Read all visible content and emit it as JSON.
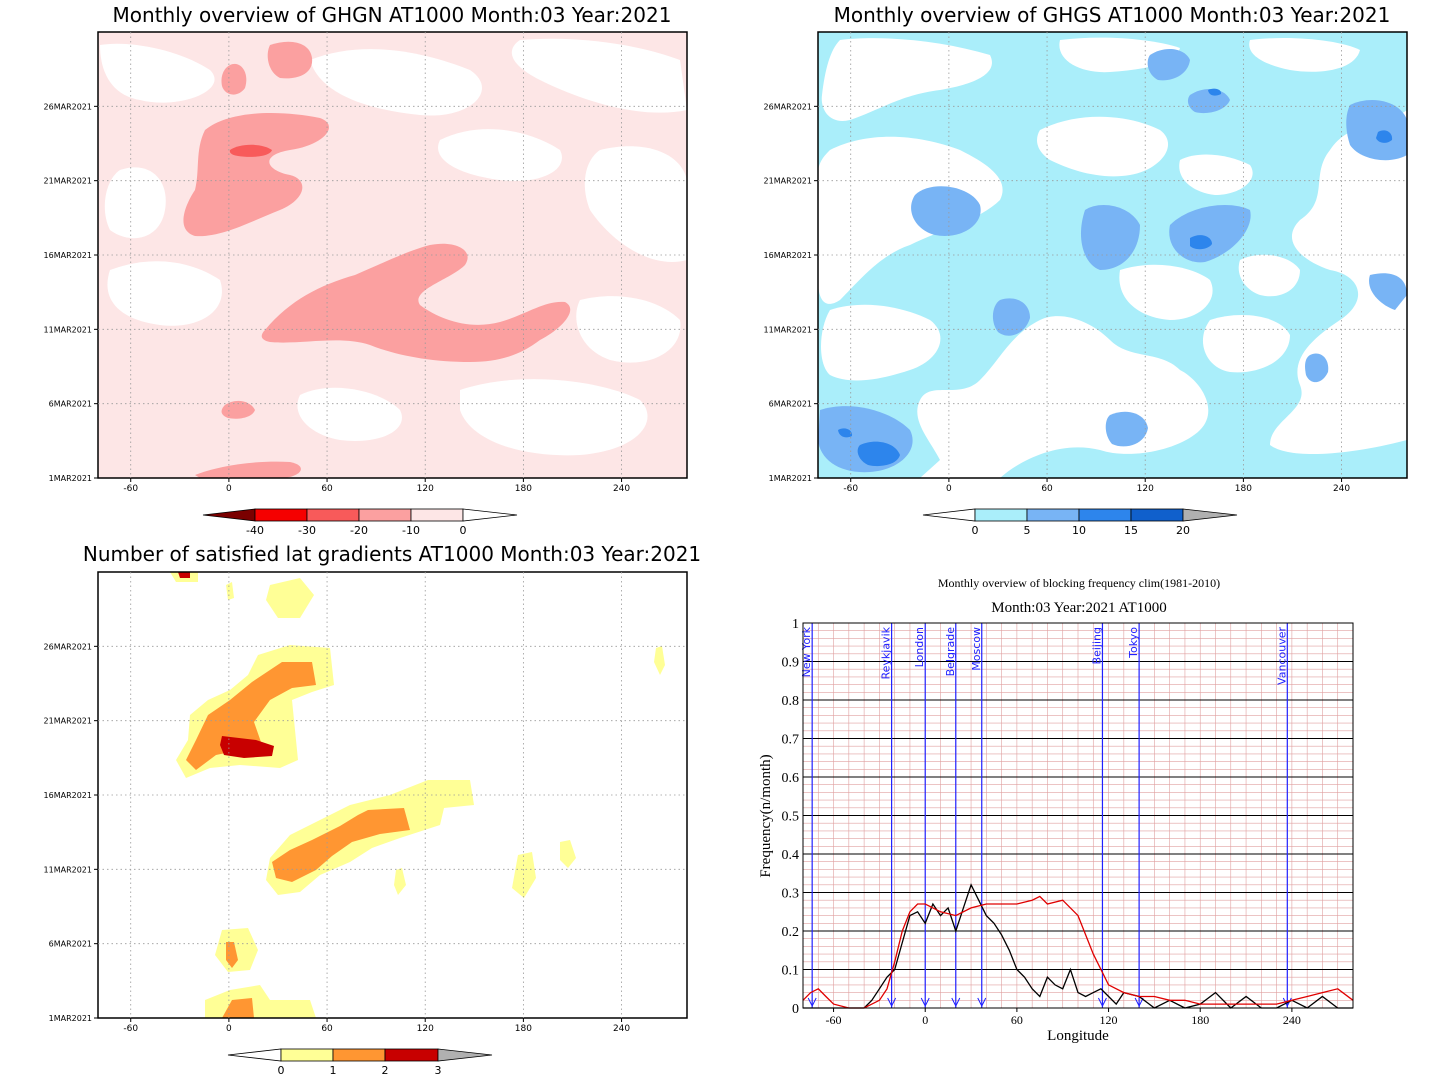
{
  "panels": {
    "ghgn": {
      "title": "Monthly overview of GHGN AT1000 Month:03 Year:2021",
      "colorbar_ticks": [
        "-40",
        "-30",
        "-20",
        "-10",
        "0"
      ],
      "colorbar_colors": [
        "#7a0000",
        "#f50000",
        "#f85a5a",
        "#fba0a0",
        "#fde6e6"
      ]
    },
    "ghgs": {
      "title": "Monthly overview of GHGS AT1000 Month:03 Year:2021",
      "colorbar_ticks": [
        "0",
        "5",
        "10",
        "15",
        "20"
      ],
      "colorbar_colors": [
        "#aaeefa",
        "#78b4f5",
        "#2d85ec",
        "#1060cc",
        "#b0b0b0"
      ]
    },
    "lat": {
      "title": "Number of satisfied lat gradients AT1000 Month:03 Year:2021",
      "colorbar_ticks": [
        "0",
        "1",
        "2",
        "3"
      ],
      "colorbar_colors": [
        "#ffff96",
        "#ff9632",
        "#c80000",
        "#b0b0b0"
      ]
    },
    "block": {
      "title": "Monthly overview of blocking frequency clim(1981-2010)",
      "subtitle": "Month:03 Year:2021  AT1000"
    }
  },
  "time_axis": {
    "labels": [
      "1MAR2021",
      "6MAR2021",
      "11MAR2021",
      "16MAR2021",
      "21MAR2021",
      "26MAR2021"
    ]
  },
  "chart_data": [
    {
      "type": "heatmap",
      "title": "Monthly overview of GHGN AT1000 Month:03 Year:2021",
      "x_ticks": [
        -60,
        0,
        60,
        120,
        180,
        240
      ],
      "xlim": [
        -80,
        280
      ],
      "y_ticks": [
        "1MAR2021",
        "6MAR2021",
        "11MAR2021",
        "16MAR2021",
        "21MAR2021",
        "26MAR2021"
      ],
      "levels": [
        -40,
        -30,
        -20,
        -10,
        0
      ]
    },
    {
      "type": "heatmap",
      "title": "Monthly overview of GHGS AT1000 Month:03 Year:2021",
      "x_ticks": [
        -60,
        0,
        60,
        120,
        180,
        240
      ],
      "xlim": [
        -80,
        280
      ],
      "y_ticks": [
        "1MAR2021",
        "6MAR2021",
        "11MAR2021",
        "16MAR2021",
        "21MAR2021",
        "26MAR2021"
      ],
      "levels": [
        0,
        5,
        10,
        15,
        20
      ]
    },
    {
      "type": "heatmap",
      "title": "Number of satisfied lat gradients AT1000 Month:03 Year:2021",
      "x_ticks": [
        -60,
        0,
        60,
        120,
        180,
        240
      ],
      "xlim": [
        -80,
        280
      ],
      "y_ticks": [
        "1MAR2021",
        "6MAR2021",
        "11MAR2021",
        "16MAR2021",
        "21MAR2021",
        "26MAR2021"
      ],
      "levels": [
        0,
        1,
        2,
        3
      ]
    },
    {
      "type": "line",
      "title": "Monthly overview of blocking frequency clim(1981-2010)",
      "subtitle": "Month:03 Year:2021  AT1000",
      "xlabel": "Longitude",
      "ylabel": "Frequency(n/month)",
      "xlim": [
        -80,
        280
      ],
      "ylim": [
        0,
        1
      ],
      "x_ticks": [
        -60,
        0,
        60,
        120,
        180,
        240
      ],
      "y_ticks": [
        0,
        0.1,
        0.2,
        0.3,
        0.4,
        0.5,
        0.6,
        0.7,
        0.8,
        0.9,
        1
      ],
      "cities": [
        {
          "name": "New York",
          "lon": -74
        },
        {
          "name": "Reykjavik",
          "lon": -22
        },
        {
          "name": "London",
          "lon": 0
        },
        {
          "name": "Belgrade",
          "lon": 20
        },
        {
          "name": "Moscow",
          "lon": 37
        },
        {
          "name": "Beijing",
          "lon": 116
        },
        {
          "name": "Tokyo",
          "lon": 140
        },
        {
          "name": "Vancouver",
          "lon": 237
        }
      ],
      "series": [
        {
          "color": "#000000",
          "x": [
            -80,
            -70,
            -60,
            -50,
            -40,
            -35,
            -30,
            -25,
            -20,
            -15,
            -10,
            -5,
            0,
            5,
            10,
            15,
            20,
            25,
            30,
            35,
            40,
            45,
            50,
            55,
            60,
            65,
            70,
            75,
            80,
            85,
            90,
            95,
            100,
            105,
            110,
            115,
            120,
            125,
            130,
            140,
            150,
            160,
            170,
            180,
            190,
            200,
            210,
            220,
            230,
            240,
            250,
            260,
            270,
            280
          ],
          "y": [
            0,
            0,
            0,
            0,
            0,
            0.02,
            0.05,
            0.08,
            0.1,
            0.17,
            0.24,
            0.25,
            0.22,
            0.27,
            0.24,
            0.26,
            0.2,
            0.26,
            0.32,
            0.28,
            0.24,
            0.22,
            0.19,
            0.15,
            0.1,
            0.08,
            0.05,
            0.03,
            0.08,
            0.06,
            0.05,
            0.1,
            0.04,
            0.03,
            0.04,
            0.05,
            0.03,
            0.01,
            0.04,
            0.03,
            0,
            0.02,
            0,
            0.01,
            0.04,
            0,
            0.03,
            0,
            0,
            0.02,
            0,
            0.03,
            0,
            0
          ]
        },
        {
          "color": "#e00000",
          "x": [
            -80,
            -75,
            -70,
            -65,
            -60,
            -50,
            -40,
            -30,
            -25,
            -20,
            -15,
            -10,
            -5,
            0,
            10,
            20,
            30,
            40,
            50,
            60,
            70,
            75,
            80,
            90,
            100,
            110,
            120,
            130,
            140,
            150,
            160,
            170,
            180,
            190,
            200,
            210,
            220,
            230,
            240,
            250,
            260,
            270,
            280
          ],
          "y": [
            0.02,
            0.04,
            0.05,
            0.03,
            0.01,
            0,
            0,
            0.02,
            0.05,
            0.12,
            0.2,
            0.25,
            0.27,
            0.27,
            0.25,
            0.24,
            0.26,
            0.27,
            0.27,
            0.27,
            0.28,
            0.29,
            0.27,
            0.28,
            0.24,
            0.14,
            0.06,
            0.04,
            0.03,
            0.03,
            0.02,
            0.02,
            0.01,
            0.01,
            0.01,
            0.01,
            0.01,
            0.01,
            0.02,
            0.03,
            0.04,
            0.05,
            0.02
          ]
        }
      ]
    }
  ]
}
